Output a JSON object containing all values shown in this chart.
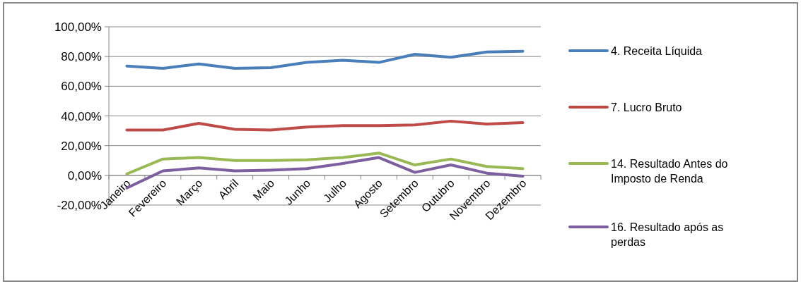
{
  "chart_data": {
    "type": "line",
    "categories": [
      "Janeiro",
      "Fevereiro",
      "Março",
      "Abril",
      "Maio",
      "Junho",
      "Julho",
      "Agosto",
      "Setembro",
      "Outubro",
      "Novembro",
      "Dezembro"
    ],
    "series": [
      {
        "name": "4. Receita Líquida",
        "color": "#4a7ebb",
        "values": [
          73.5,
          72,
          75,
          72,
          72.5,
          76,
          77.5,
          76,
          81.5,
          79.5,
          83,
          83.5
        ]
      },
      {
        "name": "7. Lucro Bruto",
        "color": "#be4b48",
        "values": [
          30.5,
          30.5,
          35,
          31,
          30.5,
          32.5,
          33.5,
          33.5,
          34,
          36.5,
          34.5,
          35.5
        ]
      },
      {
        "name": "14. Resultado Antes do Imposto de Renda",
        "color": "#98b954",
        "values": [
          1,
          11,
          12,
          10,
          10,
          10.5,
          12,
          15,
          7,
          11,
          6,
          4.5
        ]
      },
      {
        "name": "16. Resultado após as perdas",
        "color": "#7d5fa0",
        "values": [
          -8.5,
          3,
          5,
          3,
          3.5,
          4.5,
          8,
          12,
          2,
          7,
          1.5,
          -0.5
        ]
      }
    ],
    "ylim": [
      -20,
      100
    ],
    "yticks": [
      {
        "value": -20,
        "label": "-20,00%"
      },
      {
        "value": 0,
        "label": "0,00%"
      },
      {
        "value": 20,
        "label": "20,00%"
      },
      {
        "value": 40,
        "label": "40,00%"
      },
      {
        "value": 60,
        "label": "60,00%"
      },
      {
        "value": 80,
        "label": "80,00%"
      },
      {
        "value": 100,
        "label": "100,00%"
      }
    ],
    "grid": "y",
    "legend": "right",
    "marker": "none",
    "line_style": "solid"
  }
}
